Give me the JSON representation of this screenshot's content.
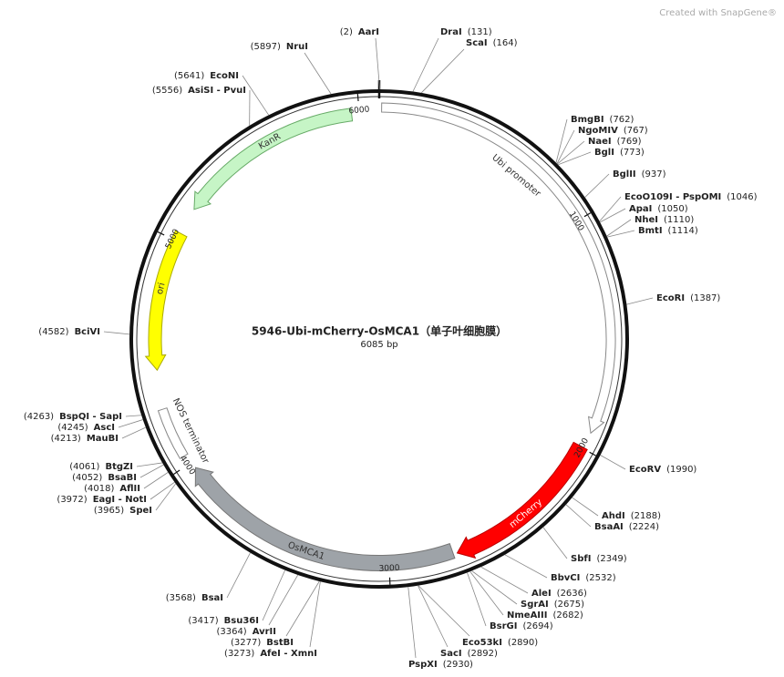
{
  "title": "5946-Ubi-mCherry-OsMCA1（单子叶细胞膜）",
  "length": 6085,
  "length_label": "6085 bp",
  "watermark": "Created with SnapGene®",
  "ticks": [
    1000,
    2000,
    3000,
    4000,
    5000,
    6000
  ],
  "features": [
    {
      "name": "Ubi promoter"
    },
    {
      "name": "mCherry"
    },
    {
      "name": "OsMCA1"
    },
    {
      "name": "NOS terminator"
    },
    {
      "name": "ori"
    },
    {
      "name": "KanR"
    }
  ],
  "sites": [
    {
      "name": "AarI",
      "position": 2,
      "label": "(2)"
    },
    {
      "name": "DraI",
      "position": 131,
      "label": "(131)"
    },
    {
      "name": "ScaI",
      "position": 164,
      "label": "(164)"
    },
    {
      "name": "BmgBI",
      "position": 762,
      "label": "(762)"
    },
    {
      "name": "NgoMIV",
      "position": 767,
      "label": "(767)"
    },
    {
      "name": "NaeI",
      "position": 769,
      "label": "(769)"
    },
    {
      "name": "BglI",
      "position": 773,
      "label": "(773)"
    },
    {
      "name": "BglII",
      "position": 937,
      "label": "(937)"
    },
    {
      "name": "EcoO109I - PspOMI",
      "position": 1046,
      "label": "(1046)"
    },
    {
      "name": "ApaI",
      "position": 1050,
      "label": "(1050)"
    },
    {
      "name": "NheI",
      "position": 1110,
      "label": "(1110)"
    },
    {
      "name": "BmtI",
      "position": 1114,
      "label": "(1114)"
    },
    {
      "name": "EcoRI",
      "position": 1387,
      "label": "(1387)"
    },
    {
      "name": "EcoRV",
      "position": 1990,
      "label": "(1990)"
    },
    {
      "name": "AhdI",
      "position": 2188,
      "label": "(2188)"
    },
    {
      "name": "BsaAI",
      "position": 2224,
      "label": "(2224)"
    },
    {
      "name": "SbfI",
      "position": 2349,
      "label": "(2349)"
    },
    {
      "name": "BbvCI",
      "position": 2532,
      "label": "(2532)"
    },
    {
      "name": "AleI",
      "position": 2636,
      "label": "(2636)"
    },
    {
      "name": "SgrAI",
      "position": 2675,
      "label": "(2675)"
    },
    {
      "name": "NmeAIII",
      "position": 2682,
      "label": "(2682)"
    },
    {
      "name": "BsrGI",
      "position": 2694,
      "label": "(2694)"
    },
    {
      "name": "Eco53kI",
      "position": 2890,
      "label": "(2890)"
    },
    {
      "name": "SacI",
      "position": 2892,
      "label": "(2892)"
    },
    {
      "name": "PspXI",
      "position": 2930,
      "label": "(2930)"
    },
    {
      "name": "AfeI - XmnI",
      "position": 3273,
      "label": "(3273)"
    },
    {
      "name": "BstBI",
      "position": 3277,
      "label": "(3277)"
    },
    {
      "name": "AvrII",
      "position": 3364,
      "label": "(3364)"
    },
    {
      "name": "Bsu36I",
      "position": 3417,
      "label": "(3417)"
    },
    {
      "name": "BsaI",
      "position": 3568,
      "label": "(3568)"
    },
    {
      "name": "SpeI",
      "position": 3965,
      "label": "(3965)"
    },
    {
      "name": "EagI - NotI",
      "position": 3972,
      "label": "(3972)"
    },
    {
      "name": "AflII",
      "position": 4018,
      "label": "(4018)"
    },
    {
      "name": "BsaBI",
      "position": 4052,
      "label": "(4052)"
    },
    {
      "name": "BtgZI",
      "position": 4061,
      "label": "(4061)"
    },
    {
      "name": "MauBI",
      "position": 4213,
      "label": "(4213)"
    },
    {
      "name": "AscI",
      "position": 4245,
      "label": "(4245)"
    },
    {
      "name": "BspQI - SapI",
      "position": 4263,
      "label": "(4263)"
    },
    {
      "name": "BciVI",
      "position": 4582,
      "label": "(4582)"
    },
    {
      "name": "AsiSI - PvuI",
      "position": 5556,
      "label": "(5556)"
    },
    {
      "name": "EcoNI",
      "position": 5641,
      "label": "(5641)"
    },
    {
      "name": "NruI",
      "position": 5897,
      "label": "(5897)"
    }
  ]
}
